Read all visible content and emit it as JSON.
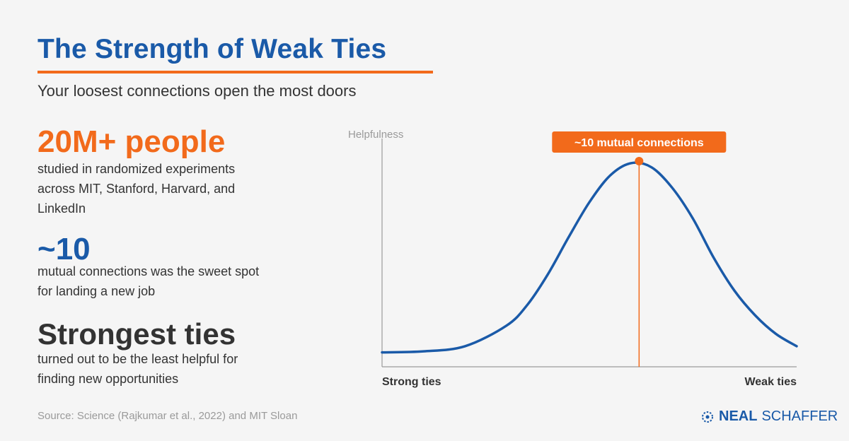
{
  "header": {
    "title": "The Strength of Weak Ties",
    "subtitle": "Your loosest connections open the most doors"
  },
  "stats": [
    {
      "value": "20M+ people",
      "lines": [
        "studied in randomized experiments",
        "across MIT, Stanford, Harvard, and",
        "LinkedIn"
      ]
    },
    {
      "value": "~10",
      "lines": [
        "mutual connections was the sweet spot",
        "for landing a new job"
      ]
    },
    {
      "value": "Strongest ties",
      "lines": [
        "turned out to be the least helpful for",
        "finding new opportunities"
      ]
    }
  ],
  "source": "Source: Science (Rajkumar et al., 2022) and MIT Sloan",
  "brand": {
    "part1": "NEAL",
    "part2": "SCHAFFER"
  },
  "colors": {
    "orange": "#f26a1b",
    "blue": "#1a5aa8",
    "dark": "#333333",
    "gray": "#9a9a9a"
  },
  "chart_data": {
    "type": "line",
    "ylabel": "Helpfulness",
    "x_tick_labels": [
      "Strong ties",
      "Weak ties"
    ],
    "xlim": [
      0,
      1
    ],
    "ylim": [
      0,
      1
    ],
    "series": [
      {
        "x": [
          0,
          0.1,
          0.2,
          0.3,
          0.35,
          0.4,
          0.45,
          0.5,
          0.55,
          0.6,
          0.65,
          0.7,
          0.75,
          0.8,
          0.85,
          0.9,
          0.95,
          1.0
        ],
        "values": [
          0.07,
          0.075,
          0.1,
          0.2,
          0.3,
          0.45,
          0.63,
          0.8,
          0.93,
          0.99,
          0.97,
          0.87,
          0.72,
          0.53,
          0.37,
          0.25,
          0.16,
          0.1
        ]
      }
    ],
    "peak": {
      "x": 0.62,
      "y": 1.0,
      "label": "~10 mutual connections"
    },
    "grid": false
  }
}
